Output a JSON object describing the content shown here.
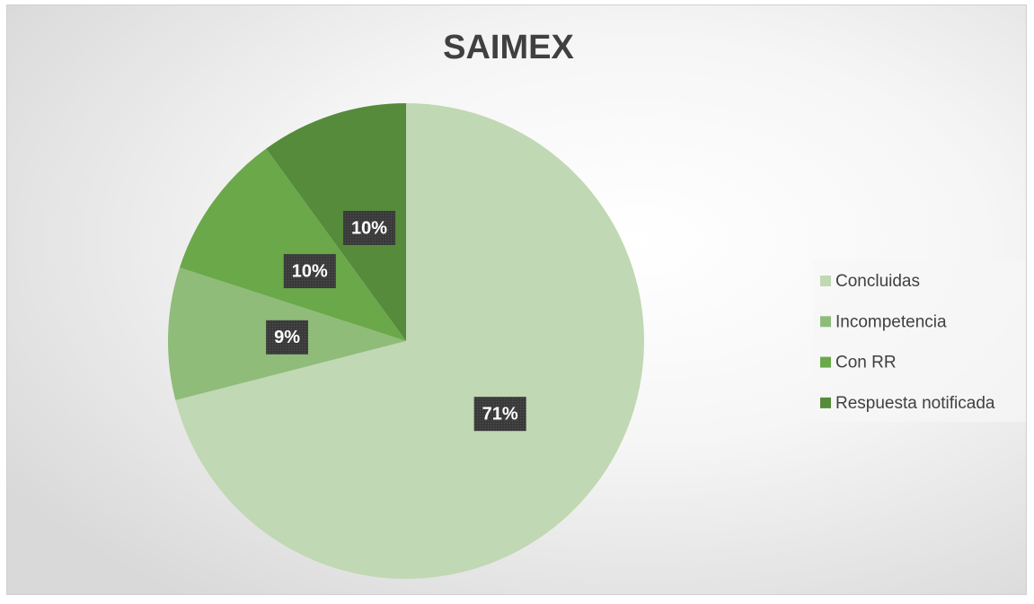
{
  "chart_data": {
    "type": "pie",
    "title": "SAIMEX",
    "categories": [
      "Concluidas",
      "Incompetencia",
      "Con RR",
      "Respuesta notificada"
    ],
    "values": [
      71,
      9,
      10,
      10
    ],
    "value_labels": [
      "71%",
      "9%",
      "10%",
      "10%"
    ],
    "colors": [
      "#c0d8b3",
      "#8fbc79",
      "#6aa84a",
      "#558b3b"
    ],
    "legend": "right"
  }
}
